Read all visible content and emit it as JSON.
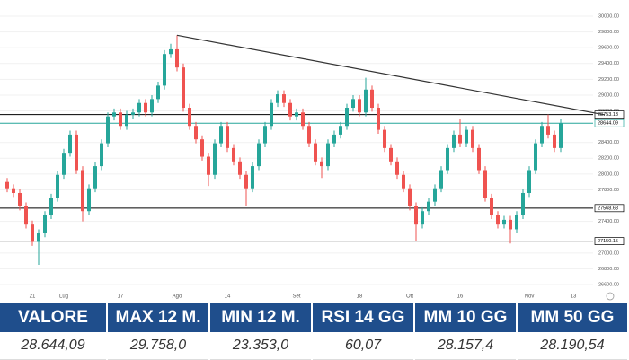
{
  "chart_data": {
    "type": "candlestick",
    "categories": [
      null,
      null,
      null,
      null,
      "21",
      null,
      null,
      null,
      null,
      "Lug",
      null,
      null,
      null,
      null,
      null,
      null,
      null,
      null,
      "17",
      null,
      null,
      null,
      null,
      null,
      null,
      null,
      null,
      "Ago",
      null,
      null,
      null,
      null,
      null,
      null,
      null,
      "14",
      null,
      null,
      null,
      null,
      null,
      null,
      null,
      null,
      null,
      null,
      "Set",
      null,
      null,
      null,
      null,
      null,
      null,
      null,
      null,
      null,
      "18",
      null,
      null,
      null,
      null,
      null,
      null,
      null,
      "Ott",
      null,
      null,
      null,
      null,
      null,
      null,
      null,
      "16",
      null,
      null,
      null,
      null,
      null,
      null,
      null,
      null,
      null,
      null,
      "Nov",
      null,
      null,
      null,
      null,
      null,
      null,
      "13"
    ],
    "series": [
      {
        "up_color": "#26a69a",
        "down_color": "#ef5350",
        "open": [
          27900,
          27820,
          27760,
          27590,
          27360,
          27140,
          27250,
          27480,
          27700,
          27990,
          28270,
          28500,
          28050,
          27530,
          27820,
          28100,
          28390,
          28730,
          28780,
          28610,
          28750,
          28780,
          28900,
          28780,
          28950,
          29120,
          29520,
          29580,
          29350,
          28840,
          28610,
          28440,
          28220,
          27990,
          28390,
          28610,
          28330,
          28160,
          27990,
          27820,
          28100,
          28390,
          28610,
          28900,
          29010,
          28900,
          28730,
          28780,
          28610,
          28390,
          28160,
          28100,
          28390,
          28500,
          28610,
          28840,
          28950,
          28780,
          29070,
          28840,
          28560,
          28330,
          28160,
          27990,
          27820,
          27590,
          27360,
          27530,
          27650,
          27820,
          28050,
          28330,
          28500,
          28390,
          28560,
          28330,
          28050,
          27700,
          27480,
          27360,
          27420,
          27300,
          27480,
          27760,
          28050,
          28390,
          28610,
          28500,
          28330,
          null,
          null
        ],
        "high": [
          27950,
          27870,
          27810,
          27640,
          27410,
          27300,
          27530,
          27750,
          28040,
          28320,
          28550,
          28550,
          28100,
          27870,
          28150,
          28440,
          28780,
          28830,
          28830,
          28800,
          28830,
          28950,
          28950,
          29000,
          29170,
          29570,
          29650,
          29758,
          29400,
          28890,
          28660,
          28490,
          28270,
          28440,
          28660,
          28660,
          28380,
          28210,
          28040,
          28150,
          28440,
          28660,
          28950,
          29060,
          29060,
          28950,
          28830,
          28830,
          28660,
          28440,
          28210,
          28440,
          28550,
          28660,
          28890,
          29000,
          29000,
          29220,
          29120,
          28890,
          28610,
          28380,
          28210,
          28040,
          27870,
          27640,
          27580,
          27700,
          27870,
          28100,
          28380,
          28550,
          28700,
          28610,
          28610,
          28380,
          28100,
          27750,
          27530,
          27470,
          27470,
          27530,
          27810,
          28100,
          28440,
          28660,
          28753,
          28550,
          28700,
          null,
          null
        ],
        "low": [
          27770,
          27710,
          27540,
          27310,
          27090,
          26850,
          27200,
          27430,
          27650,
          27940,
          28220,
          28000,
          27400,
          27480,
          27770,
          28050,
          28340,
          28680,
          28560,
          28560,
          28700,
          28730,
          28730,
          28730,
          28900,
          29070,
          29470,
          29300,
          28790,
          28560,
          28390,
          28170,
          27850,
          27940,
          28340,
          28280,
          28110,
          27940,
          27600,
          27770,
          28050,
          28340,
          28560,
          28850,
          28850,
          28680,
          28680,
          28560,
          28340,
          28110,
          27950,
          28050,
          28340,
          28450,
          28560,
          28790,
          28730,
          28730,
          28790,
          28510,
          28280,
          28110,
          27940,
          27770,
          27540,
          27150,
          27310,
          27480,
          27600,
          27770,
          28000,
          28280,
          28340,
          28340,
          28280,
          28000,
          27650,
          27430,
          27310,
          27310,
          27120,
          27250,
          27430,
          27710,
          28000,
          28340,
          28450,
          28280,
          28280,
          null,
          null
        ],
        "close": [
          27820,
          27760,
          27590,
          27360,
          27140,
          27250,
          27480,
          27700,
          27990,
          28270,
          28500,
          28050,
          27530,
          27820,
          28100,
          28390,
          28730,
          28780,
          28610,
          28750,
          28780,
          28900,
          28780,
          28950,
          29120,
          29520,
          29580,
          29350,
          28840,
          28610,
          28440,
          28220,
          27990,
          28390,
          28610,
          28330,
          28160,
          27990,
          27820,
          28100,
          28390,
          28610,
          28900,
          29010,
          28900,
          28730,
          28780,
          28610,
          28390,
          28160,
          28100,
          28390,
          28500,
          28610,
          28840,
          28950,
          28780,
          29070,
          28840,
          28560,
          28330,
          28160,
          27990,
          27820,
          27590,
          27360,
          27530,
          27650,
          27820,
          28050,
          28330,
          28500,
          28390,
          28560,
          28330,
          28050,
          27700,
          27480,
          27360,
          27420,
          27300,
          27480,
          27760,
          28050,
          28390,
          28610,
          28500,
          28330,
          28644.09,
          null,
          null
        ]
      }
    ],
    "ylim": [
      26600,
      30000
    ],
    "yticks": [
      {
        "value": 30000,
        "label": "30000.00"
      },
      {
        "value": 29800,
        "label": "29800.00"
      },
      {
        "value": 29600,
        "label": "29600.00"
      },
      {
        "value": 29400,
        "label": "29400.00"
      },
      {
        "value": 29200,
        "label": "29200.00"
      },
      {
        "value": 29000,
        "label": "29000.00"
      },
      {
        "value": 28800,
        "label": "28800.00"
      },
      {
        "value": 28400,
        "label": "28400.00"
      },
      {
        "value": 28200,
        "label": "28200.00"
      },
      {
        "value": 28000,
        "label": "28000.00"
      },
      {
        "value": 27800,
        "label": "27800.00"
      },
      {
        "value": 27400,
        "label": "27400.00"
      },
      {
        "value": 27000,
        "label": "27000.00"
      },
      {
        "value": 26800,
        "label": "26800.00"
      },
      {
        "value": 26600,
        "label": "26600.00"
      }
    ],
    "grid": true,
    "levels": [
      {
        "value": 28753.13,
        "color": "#000000"
      },
      {
        "value": 28644.09,
        "color": "#26a69a"
      },
      {
        "value": 27568.68,
        "color": "#000000"
      },
      {
        "value": 27150.15,
        "color": "#000000"
      }
    ],
    "trendline": {
      "x": [
        27,
        95
      ],
      "y": [
        29758,
        28750
      ],
      "color": "#333333"
    }
  },
  "table": {
    "headers": [
      "VALORE",
      "MAX 12 M.",
      "MIN 12 M.",
      "RSI 14 GG",
      "MM 10 GG",
      "MM 50 GG"
    ],
    "rows": [
      [
        "28.644,09",
        "29.758,0",
        "23.353,0",
        "60,07",
        "28.157,4",
        "28.190,54"
      ]
    ]
  }
}
